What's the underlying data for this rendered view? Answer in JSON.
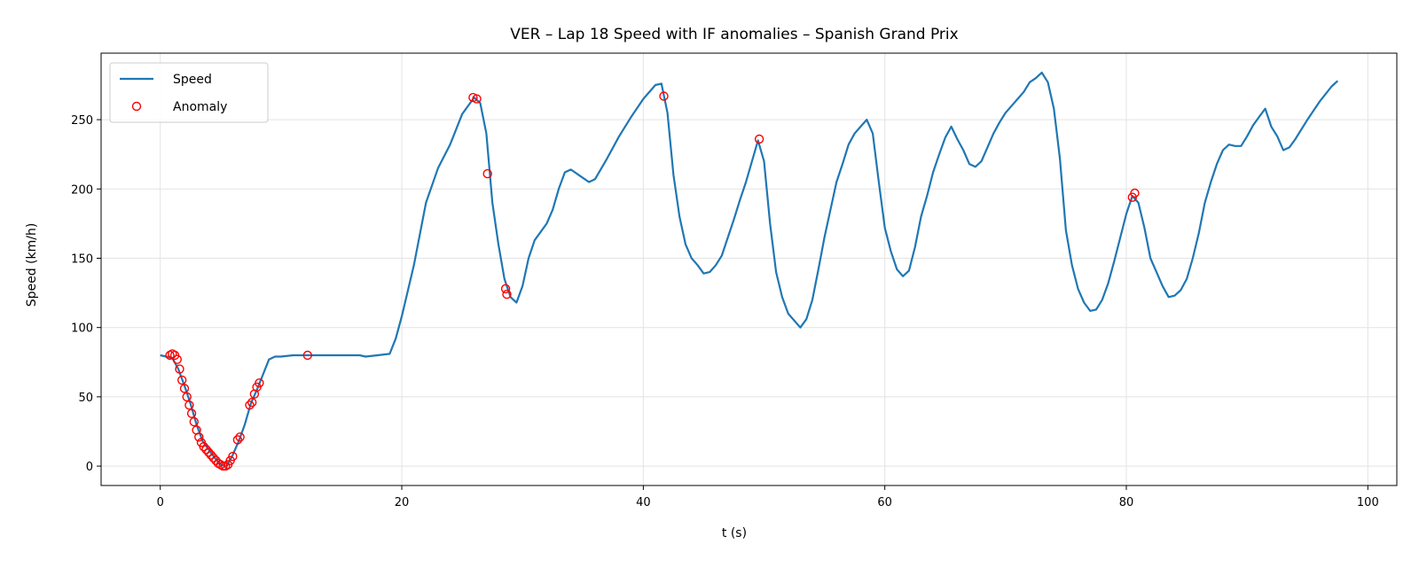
{
  "chart_data": {
    "type": "line",
    "title": "VER – Lap 18 Speed with IF anomalies – Spanish Grand Prix",
    "xlabel": "t (s)",
    "ylabel": "Speed (km/h)",
    "xlim": [
      -4.9,
      102.4
    ],
    "ylim": [
      -14,
      298
    ],
    "x_ticks": [
      0,
      20,
      40,
      60,
      80,
      100
    ],
    "y_ticks": [
      0,
      50,
      100,
      150,
      200,
      250
    ],
    "grid": true,
    "legend_position": "top-left",
    "series": [
      {
        "name": "Speed",
        "kind": "line",
        "color": "#1f77b4",
        "points": [
          [
            0,
            80
          ],
          [
            0.5,
            79
          ],
          [
            1,
            78
          ],
          [
            1.5,
            70
          ],
          [
            2,
            58
          ],
          [
            2.5,
            45
          ],
          [
            3,
            30
          ],
          [
            3.5,
            18
          ],
          [
            4,
            12
          ],
          [
            4.5,
            6
          ],
          [
            5,
            1
          ],
          [
            5.5,
            0
          ],
          [
            6,
            8
          ],
          [
            6.5,
            18
          ],
          [
            7,
            30
          ],
          [
            7.5,
            45
          ],
          [
            8,
            55
          ],
          [
            8.5,
            66
          ],
          [
            9,
            77
          ],
          [
            9.5,
            79
          ],
          [
            10,
            79
          ],
          [
            11,
            80
          ],
          [
            13,
            80
          ],
          [
            15,
            80
          ],
          [
            16.5,
            80
          ],
          [
            17,
            79
          ],
          [
            18,
            80
          ],
          [
            19,
            81
          ],
          [
            19.5,
            92
          ],
          [
            20,
            108
          ],
          [
            21,
            145
          ],
          [
            22,
            190
          ],
          [
            23,
            215
          ],
          [
            24,
            232
          ],
          [
            25,
            254
          ],
          [
            25.5,
            260
          ],
          [
            26,
            266
          ],
          [
            26.5,
            262
          ],
          [
            27,
            240
          ],
          [
            27.5,
            190
          ],
          [
            28,
            160
          ],
          [
            28.5,
            135
          ],
          [
            29,
            122
          ],
          [
            29.5,
            118
          ],
          [
            30,
            130
          ],
          [
            30.5,
            150
          ],
          [
            31,
            163
          ],
          [
            32,
            175
          ],
          [
            32.5,
            185
          ],
          [
            33,
            200
          ],
          [
            33.5,
            212
          ],
          [
            34,
            214
          ],
          [
            35,
            208
          ],
          [
            35.5,
            205
          ],
          [
            36,
            207
          ],
          [
            37,
            222
          ],
          [
            38,
            238
          ],
          [
            39,
            252
          ],
          [
            40,
            265
          ],
          [
            41,
            275
          ],
          [
            41.5,
            276
          ],
          [
            42,
            255
          ],
          [
            42.5,
            210
          ],
          [
            43,
            180
          ],
          [
            43.5,
            160
          ],
          [
            44,
            150
          ],
          [
            44.5,
            145
          ],
          [
            45,
            139
          ],
          [
            45.5,
            140
          ],
          [
            46,
            145
          ],
          [
            46.5,
            152
          ],
          [
            47,
            165
          ],
          [
            47.5,
            178
          ],
          [
            48,
            192
          ],
          [
            48.5,
            205
          ],
          [
            49,
            220
          ],
          [
            49.5,
            235
          ],
          [
            50,
            220
          ],
          [
            50.5,
            175
          ],
          [
            51,
            140
          ],
          [
            51.5,
            122
          ],
          [
            52,
            110
          ],
          [
            52.5,
            105
          ],
          [
            53,
            100
          ],
          [
            53.5,
            106
          ],
          [
            54,
            120
          ],
          [
            54.5,
            142
          ],
          [
            55,
            165
          ],
          [
            55.5,
            185
          ],
          [
            56,
            205
          ],
          [
            56.5,
            218
          ],
          [
            57,
            232
          ],
          [
            57.5,
            240
          ],
          [
            58,
            245
          ],
          [
            58.5,
            250
          ],
          [
            59,
            240
          ],
          [
            59.5,
            205
          ],
          [
            60,
            172
          ],
          [
            60.5,
            155
          ],
          [
            61,
            142
          ],
          [
            61.5,
            137
          ],
          [
            62,
            141
          ],
          [
            62.5,
            158
          ],
          [
            63,
            180
          ],
          [
            63.5,
            195
          ],
          [
            64,
            212
          ],
          [
            64.5,
            225
          ],
          [
            65,
            237
          ],
          [
            65.5,
            245
          ],
          [
            66,
            236
          ],
          [
            66.5,
            228
          ],
          [
            67,
            218
          ],
          [
            67.5,
            216
          ],
          [
            68,
            220
          ],
          [
            68.5,
            230
          ],
          [
            69,
            240
          ],
          [
            69.5,
            248
          ],
          [
            70,
            255
          ],
          [
            71,
            265
          ],
          [
            71.5,
            270
          ],
          [
            72,
            277
          ],
          [
            72.5,
            280
          ],
          [
            73,
            284
          ],
          [
            73.5,
            277
          ],
          [
            74,
            258
          ],
          [
            74.5,
            222
          ],
          [
            75,
            170
          ],
          [
            75.5,
            145
          ],
          [
            76,
            128
          ],
          [
            76.5,
            118
          ],
          [
            77,
            112
          ],
          [
            77.5,
            113
          ],
          [
            78,
            120
          ],
          [
            78.5,
            132
          ],
          [
            79,
            148
          ],
          [
            79.5,
            165
          ],
          [
            80,
            182
          ],
          [
            80.5,
            195
          ],
          [
            81,
            190
          ],
          [
            81.5,
            172
          ],
          [
            82,
            150
          ],
          [
            82.5,
            140
          ],
          [
            83,
            130
          ],
          [
            83.5,
            122
          ],
          [
            84,
            123
          ],
          [
            84.5,
            127
          ],
          [
            85,
            135
          ],
          [
            85.5,
            150
          ],
          [
            86,
            168
          ],
          [
            86.5,
            190
          ],
          [
            87,
            205
          ],
          [
            87.5,
            218
          ],
          [
            88,
            228
          ],
          [
            88.5,
            232
          ],
          [
            89,
            231
          ],
          [
            89.5,
            231
          ],
          [
            90,
            238
          ],
          [
            90.5,
            246
          ],
          [
            91,
            252
          ],
          [
            91.5,
            258
          ],
          [
            92,
            245
          ],
          [
            92.5,
            238
          ],
          [
            93,
            228
          ],
          [
            93.5,
            230
          ],
          [
            94,
            236
          ],
          [
            95,
            250
          ],
          [
            96,
            263
          ],
          [
            97,
            274
          ],
          [
            97.5,
            278
          ]
        ]
      },
      {
        "name": "Anomaly",
        "kind": "scatter",
        "color": "#ff0000",
        "points": [
          [
            0.8,
            80
          ],
          [
            1.0,
            81
          ],
          [
            1.2,
            80
          ],
          [
            1.4,
            77
          ],
          [
            1.6,
            70
          ],
          [
            1.8,
            62
          ],
          [
            2.0,
            56
          ],
          [
            2.2,
            50
          ],
          [
            2.4,
            44
          ],
          [
            2.6,
            38
          ],
          [
            2.8,
            32
          ],
          [
            3.0,
            26
          ],
          [
            3.2,
            21
          ],
          [
            3.4,
            17
          ],
          [
            3.6,
            14
          ],
          [
            3.8,
            12
          ],
          [
            4.0,
            10
          ],
          [
            4.2,
            8
          ],
          [
            4.4,
            6
          ],
          [
            4.6,
            4
          ],
          [
            4.8,
            2
          ],
          [
            5.0,
            1
          ],
          [
            5.2,
            0
          ],
          [
            5.4,
            0
          ],
          [
            5.6,
            1
          ],
          [
            5.8,
            4
          ],
          [
            6.0,
            7
          ],
          [
            6.4,
            19
          ],
          [
            6.6,
            21
          ],
          [
            7.4,
            44
          ],
          [
            7.6,
            46
          ],
          [
            7.8,
            52
          ],
          [
            8.0,
            57
          ],
          [
            8.2,
            60
          ],
          [
            12.2,
            80
          ],
          [
            25.9,
            266
          ],
          [
            26.2,
            265
          ],
          [
            27.1,
            211
          ],
          [
            28.6,
            128
          ],
          [
            28.7,
            124
          ],
          [
            41.7,
            267
          ],
          [
            49.6,
            236
          ],
          [
            80.5,
            194
          ],
          [
            80.7,
            197
          ]
        ]
      }
    ]
  }
}
